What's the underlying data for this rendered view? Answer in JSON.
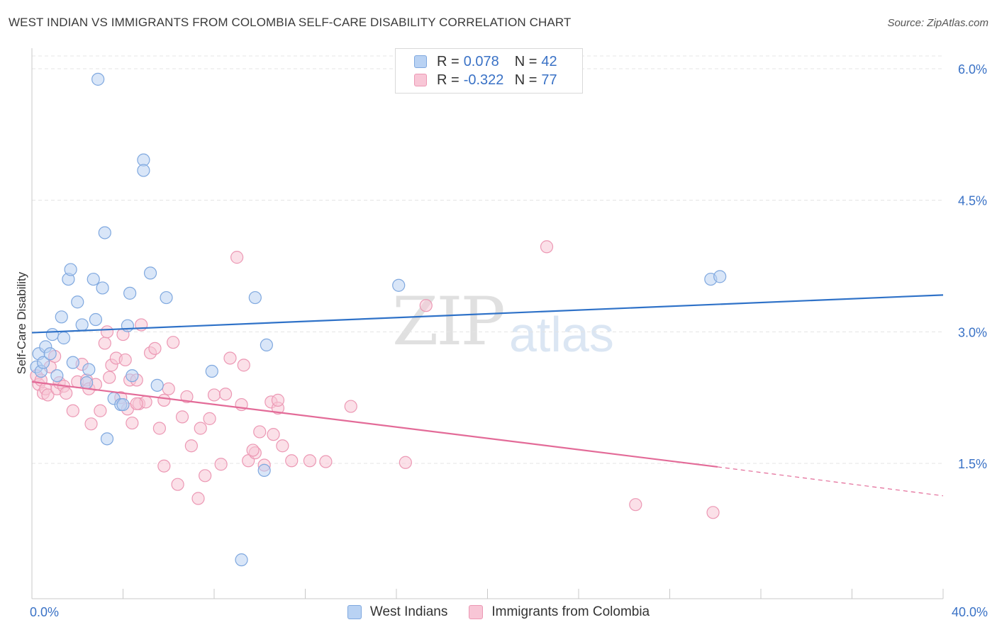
{
  "title": "WEST INDIAN VS IMMIGRANTS FROM COLOMBIA SELF-CARE DISABILITY CORRELATION CHART",
  "source": "Source: ZipAtlas.com",
  "watermark": {
    "zip": "ZIP",
    "atlas": "atlas"
  },
  "legend_top": [
    {
      "r_label": "R =",
      "r_value": "0.078",
      "n_label": "N =",
      "n_value": "42"
    },
    {
      "r_label": "R =",
      "r_value": "-0.322",
      "n_label": "N =",
      "n_value": "77"
    }
  ],
  "colors": {
    "blue_fill": "#b9d2f3",
    "blue_stroke": "#7fa8df",
    "blue_line": "#2f72c8",
    "pink_fill": "#f8c6d6",
    "pink_stroke": "#ec98b4",
    "pink_line": "#e36b98",
    "axis_text": "#3a72c6",
    "grid": "#e4e4e4"
  },
  "chart_data": {
    "type": "scatter",
    "title": "WEST INDIAN VS IMMIGRANTS FROM COLOMBIA SELF-CARE DISABILITY CORRELATION CHART",
    "xlabel": "",
    "ylabel": "Self-Care Disability",
    "xlim": [
      0,
      40
    ],
    "ylim": [
      0,
      6.2
    ],
    "x_tick_labels": [
      "0.0%",
      "40.0%"
    ],
    "y_ticks": [
      1.5,
      3.0,
      4.5,
      6.0
    ],
    "y_tick_labels": [
      "1.5%",
      "3.0%",
      "4.5%",
      "6.0%"
    ],
    "grid": true,
    "legend_placement": "bottom",
    "series": [
      {
        "name": "West Indians",
        "r": 0.078,
        "n": 42,
        "trend": {
          "x": [
            0,
            40
          ],
          "y": [
            2.99,
            3.42
          ]
        },
        "points": [
          [
            0.2,
            2.6
          ],
          [
            0.3,
            2.75
          ],
          [
            0.4,
            2.55
          ],
          [
            0.5,
            2.65
          ],
          [
            0.6,
            2.83
          ],
          [
            0.8,
            2.75
          ],
          [
            0.9,
            2.97
          ],
          [
            1.1,
            2.5
          ],
          [
            1.3,
            3.17
          ],
          [
            1.4,
            2.93
          ],
          [
            1.6,
            3.6
          ],
          [
            1.7,
            3.71
          ],
          [
            1.8,
            2.65
          ],
          [
            2.0,
            3.34
          ],
          [
            2.2,
            3.08
          ],
          [
            2.4,
            2.42
          ],
          [
            2.5,
            2.57
          ],
          [
            2.7,
            3.6
          ],
          [
            2.8,
            3.14
          ],
          [
            2.9,
            5.88
          ],
          [
            3.1,
            3.5
          ],
          [
            3.2,
            4.13
          ],
          [
            3.6,
            2.24
          ],
          [
            3.9,
            2.17
          ],
          [
            4.0,
            2.17
          ],
          [
            4.2,
            3.07
          ],
          [
            4.3,
            3.44
          ],
          [
            4.4,
            2.5
          ],
          [
            4.9,
            4.96
          ],
          [
            4.9,
            4.84
          ],
          [
            5.2,
            3.67
          ],
          [
            5.5,
            2.39
          ],
          [
            5.9,
            3.39
          ],
          [
            7.9,
            2.55
          ],
          [
            9.2,
            0.4
          ],
          [
            9.8,
            3.39
          ],
          [
            10.2,
            1.42
          ],
          [
            10.3,
            2.85
          ],
          [
            16.1,
            3.53
          ],
          [
            29.8,
            3.6
          ],
          [
            30.2,
            3.63
          ],
          [
            3.3,
            1.78
          ]
        ]
      },
      {
        "name": "Immigrants from Colombia",
        "r": -0.322,
        "n": 77,
        "trend": {
          "x": [
            0,
            30.1
          ],
          "y": [
            2.43,
            1.46
          ]
        },
        "trend_dashed": {
          "x": [
            30.1,
            40
          ],
          "y": [
            1.46,
            1.13
          ]
        },
        "points": [
          [
            0.2,
            2.5
          ],
          [
            0.3,
            2.4
          ],
          [
            0.4,
            2.45
          ],
          [
            0.5,
            2.3
          ],
          [
            0.6,
            2.35
          ],
          [
            0.7,
            2.28
          ],
          [
            0.8,
            2.6
          ],
          [
            1.0,
            2.72
          ],
          [
            1.1,
            2.35
          ],
          [
            1.2,
            2.42
          ],
          [
            1.4,
            2.38
          ],
          [
            1.5,
            2.3
          ],
          [
            1.8,
            2.1
          ],
          [
            2.0,
            2.43
          ],
          [
            2.2,
            2.63
          ],
          [
            2.4,
            2.45
          ],
          [
            2.5,
            2.35
          ],
          [
            2.6,
            1.95
          ],
          [
            2.8,
            2.4
          ],
          [
            3.0,
            2.1
          ],
          [
            3.2,
            2.87
          ],
          [
            3.3,
            3.0
          ],
          [
            3.4,
            2.48
          ],
          [
            3.5,
            2.62
          ],
          [
            3.7,
            2.7
          ],
          [
            3.9,
            2.25
          ],
          [
            4.0,
            2.97
          ],
          [
            4.1,
            2.68
          ],
          [
            4.2,
            2.12
          ],
          [
            4.3,
            2.45
          ],
          [
            4.4,
            1.96
          ],
          [
            4.6,
            2.45
          ],
          [
            4.7,
            2.18
          ],
          [
            4.8,
            3.08
          ],
          [
            5.0,
            2.2
          ],
          [
            5.2,
            2.76
          ],
          [
            5.4,
            2.81
          ],
          [
            5.6,
            1.9
          ],
          [
            5.8,
            2.22
          ],
          [
            6.0,
            2.35
          ],
          [
            6.2,
            2.88
          ],
          [
            6.6,
            2.03
          ],
          [
            6.8,
            2.26
          ],
          [
            7.0,
            1.7
          ],
          [
            7.4,
            1.9
          ],
          [
            7.6,
            1.36
          ],
          [
            7.8,
            2.01
          ],
          [
            8.0,
            2.28
          ],
          [
            8.3,
            1.49
          ],
          [
            8.5,
            2.29
          ],
          [
            8.7,
            2.7
          ],
          [
            9.0,
            3.85
          ],
          [
            9.2,
            2.17
          ],
          [
            9.3,
            2.62
          ],
          [
            9.5,
            1.53
          ],
          [
            9.8,
            1.62
          ],
          [
            10.0,
            1.86
          ],
          [
            10.2,
            1.48
          ],
          [
            10.5,
            2.2
          ],
          [
            10.6,
            1.83
          ],
          [
            10.8,
            2.13
          ],
          [
            11.0,
            1.7
          ],
          [
            11.4,
            1.53
          ],
          [
            12.2,
            1.53
          ],
          [
            12.9,
            1.52
          ],
          [
            14.0,
            2.15
          ],
          [
            16.4,
            1.51
          ],
          [
            17.3,
            3.3
          ],
          [
            22.6,
            3.97
          ],
          [
            26.5,
            1.03
          ],
          [
            29.9,
            0.94
          ],
          [
            6.4,
            1.26
          ],
          [
            5.8,
            1.47
          ],
          [
            10.8,
            2.22
          ],
          [
            7.3,
            1.1
          ],
          [
            4.6,
            2.18
          ],
          [
            9.7,
            1.65
          ]
        ]
      }
    ]
  }
}
